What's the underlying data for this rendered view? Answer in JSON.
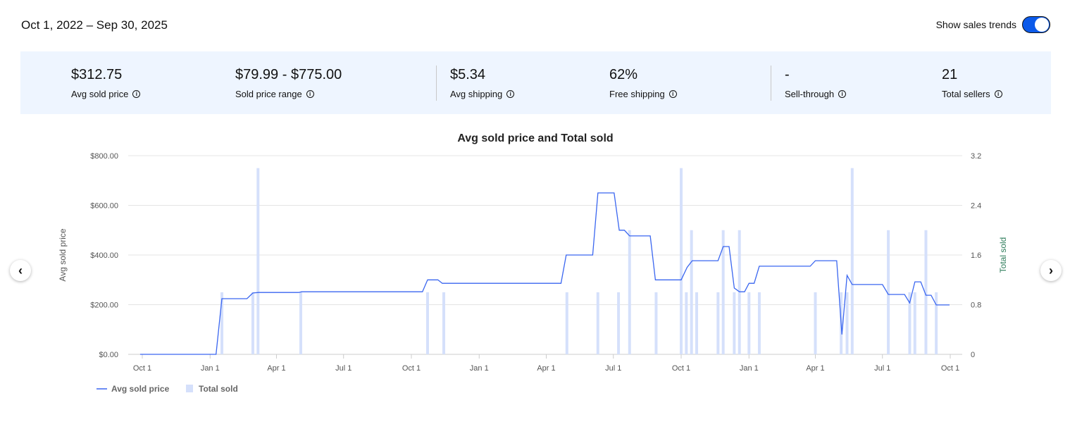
{
  "header": {
    "date_range": "Oct 1, 2022 – Sep 30, 2025",
    "trend_label": "Show sales trends",
    "trend_on": true
  },
  "stats": [
    {
      "value": "$312.75",
      "label": "Avg sold price"
    },
    {
      "value": "$79.99 - $775.00",
      "label": "Sold price range"
    },
    {
      "value": "$5.34",
      "label": "Avg shipping"
    },
    {
      "value": "62%",
      "label": "Free shipping"
    },
    {
      "value": "-",
      "label": "Sell-through"
    },
    {
      "value": "21",
      "label": "Total sellers"
    }
  ],
  "colors": {
    "line": "#3a66f0",
    "bar": "#d5e0fb",
    "accent": "#0c5ae9",
    "panel": "#eef5ff"
  },
  "chart_data": {
    "type": "bar+line",
    "title": "Avg sold price and Total sold",
    "ylabel_left": "Avg sold price",
    "ylabel_right": "Total sold",
    "ylim_left": [
      0,
      800
    ],
    "ylim_right": [
      0,
      3.2
    ],
    "yticks_left": [
      "$0.00",
      "$200.00",
      "$400.00",
      "$600.00",
      "$800.00"
    ],
    "yticks_right": [
      "0",
      "0.8",
      "1.6",
      "2.4",
      "3.2"
    ],
    "xticks": [
      {
        "date": "2022-10-01",
        "label": "Oct 1"
      },
      {
        "date": "2023-01-01",
        "label": "Jan 1"
      },
      {
        "date": "2023-04-01",
        "label": "Apr 1"
      },
      {
        "date": "2023-07-01",
        "label": "Jul 1"
      },
      {
        "date": "2023-10-01",
        "label": "Oct 1"
      },
      {
        "date": "2024-01-01",
        "label": "Jan 1"
      },
      {
        "date": "2024-04-01",
        "label": "Apr 1"
      },
      {
        "date": "2024-07-01",
        "label": "Jul 1"
      },
      {
        "date": "2024-10-01",
        "label": "Oct 1"
      },
      {
        "date": "2025-01-01",
        "label": "Jan 1"
      },
      {
        "date": "2025-04-01",
        "label": "Apr 1"
      },
      {
        "date": "2025-07-01",
        "label": "Jul 1"
      },
      {
        "date": "2025-10-01",
        "label": "Oct 1"
      }
    ],
    "grid": true,
    "legend_position": "bottom-left",
    "series": [
      {
        "name": "Avg sold price",
        "type": "line",
        "points": [
          [
            "2022-09-28",
            0
          ],
          [
            "2023-01-09",
            0
          ],
          [
            "2023-01-17",
            224
          ],
          [
            "2023-02-20",
            224
          ],
          [
            "2023-02-28",
            247
          ],
          [
            "2023-03-08",
            249
          ],
          [
            "2023-05-01",
            249
          ],
          [
            "2023-05-05",
            252
          ],
          [
            "2023-10-16",
            252
          ],
          [
            "2023-10-23",
            300
          ],
          [
            "2023-11-06",
            300
          ],
          [
            "2023-11-12",
            286
          ],
          [
            "2024-04-21",
            286
          ],
          [
            "2024-04-28",
            400
          ],
          [
            "2024-06-03",
            400
          ],
          [
            "2024-06-10",
            650
          ],
          [
            "2024-07-02",
            650
          ],
          [
            "2024-07-09",
            500
          ],
          [
            "2024-07-16",
            500
          ],
          [
            "2024-07-23",
            477
          ],
          [
            "2024-08-20",
            477
          ],
          [
            "2024-08-27",
            300
          ],
          [
            "2024-10-01",
            300
          ],
          [
            "2024-10-09",
            350
          ],
          [
            "2024-10-16",
            377
          ],
          [
            "2024-11-20",
            377
          ],
          [
            "2024-11-27",
            434
          ],
          [
            "2024-12-05",
            434
          ],
          [
            "2024-12-12",
            267
          ],
          [
            "2024-12-19",
            252
          ],
          [
            "2024-12-26",
            252
          ],
          [
            "2025-01-01",
            286
          ],
          [
            "2025-01-08",
            286
          ],
          [
            "2025-01-15",
            355
          ],
          [
            "2025-03-25",
            355
          ],
          [
            "2025-04-01",
            377
          ],
          [
            "2025-04-30",
            377
          ],
          [
            "2025-05-07",
            80
          ],
          [
            "2025-05-14",
            318
          ],
          [
            "2025-05-21",
            281
          ],
          [
            "2025-07-01",
            281
          ],
          [
            "2025-07-09",
            241
          ],
          [
            "2025-07-31",
            241
          ],
          [
            "2025-08-07",
            207
          ],
          [
            "2025-08-14",
            292
          ],
          [
            "2025-08-22",
            292
          ],
          [
            "2025-08-29",
            238
          ],
          [
            "2025-09-05",
            238
          ],
          [
            "2025-09-12",
            199
          ],
          [
            "2025-09-30",
            199
          ]
        ]
      },
      {
        "name": "Total sold",
        "type": "bar",
        "points": [
          [
            "2023-01-17",
            1
          ],
          [
            "2023-02-28",
            1
          ],
          [
            "2023-03-07",
            3
          ],
          [
            "2023-05-04",
            1
          ],
          [
            "2023-10-23",
            1
          ],
          [
            "2023-11-14",
            1
          ],
          [
            "2024-04-29",
            1
          ],
          [
            "2024-06-10",
            1
          ],
          [
            "2024-07-08",
            1
          ],
          [
            "2024-07-23",
            2
          ],
          [
            "2024-08-28",
            1
          ],
          [
            "2024-10-01",
            3
          ],
          [
            "2024-10-08",
            1
          ],
          [
            "2024-10-15",
            2
          ],
          [
            "2024-10-22",
            1
          ],
          [
            "2024-11-20",
            1
          ],
          [
            "2024-11-27",
            2
          ],
          [
            "2024-12-12",
            1
          ],
          [
            "2024-12-19",
            2
          ],
          [
            "2025-01-01",
            1
          ],
          [
            "2025-01-15",
            1
          ],
          [
            "2025-04-01",
            1
          ],
          [
            "2025-05-06",
            1
          ],
          [
            "2025-05-14",
            1
          ],
          [
            "2025-05-21",
            3
          ],
          [
            "2025-07-09",
            2
          ],
          [
            "2025-08-07",
            1
          ],
          [
            "2025-08-14",
            1
          ],
          [
            "2025-08-29",
            2
          ],
          [
            "2025-09-12",
            1
          ]
        ]
      }
    ]
  }
}
